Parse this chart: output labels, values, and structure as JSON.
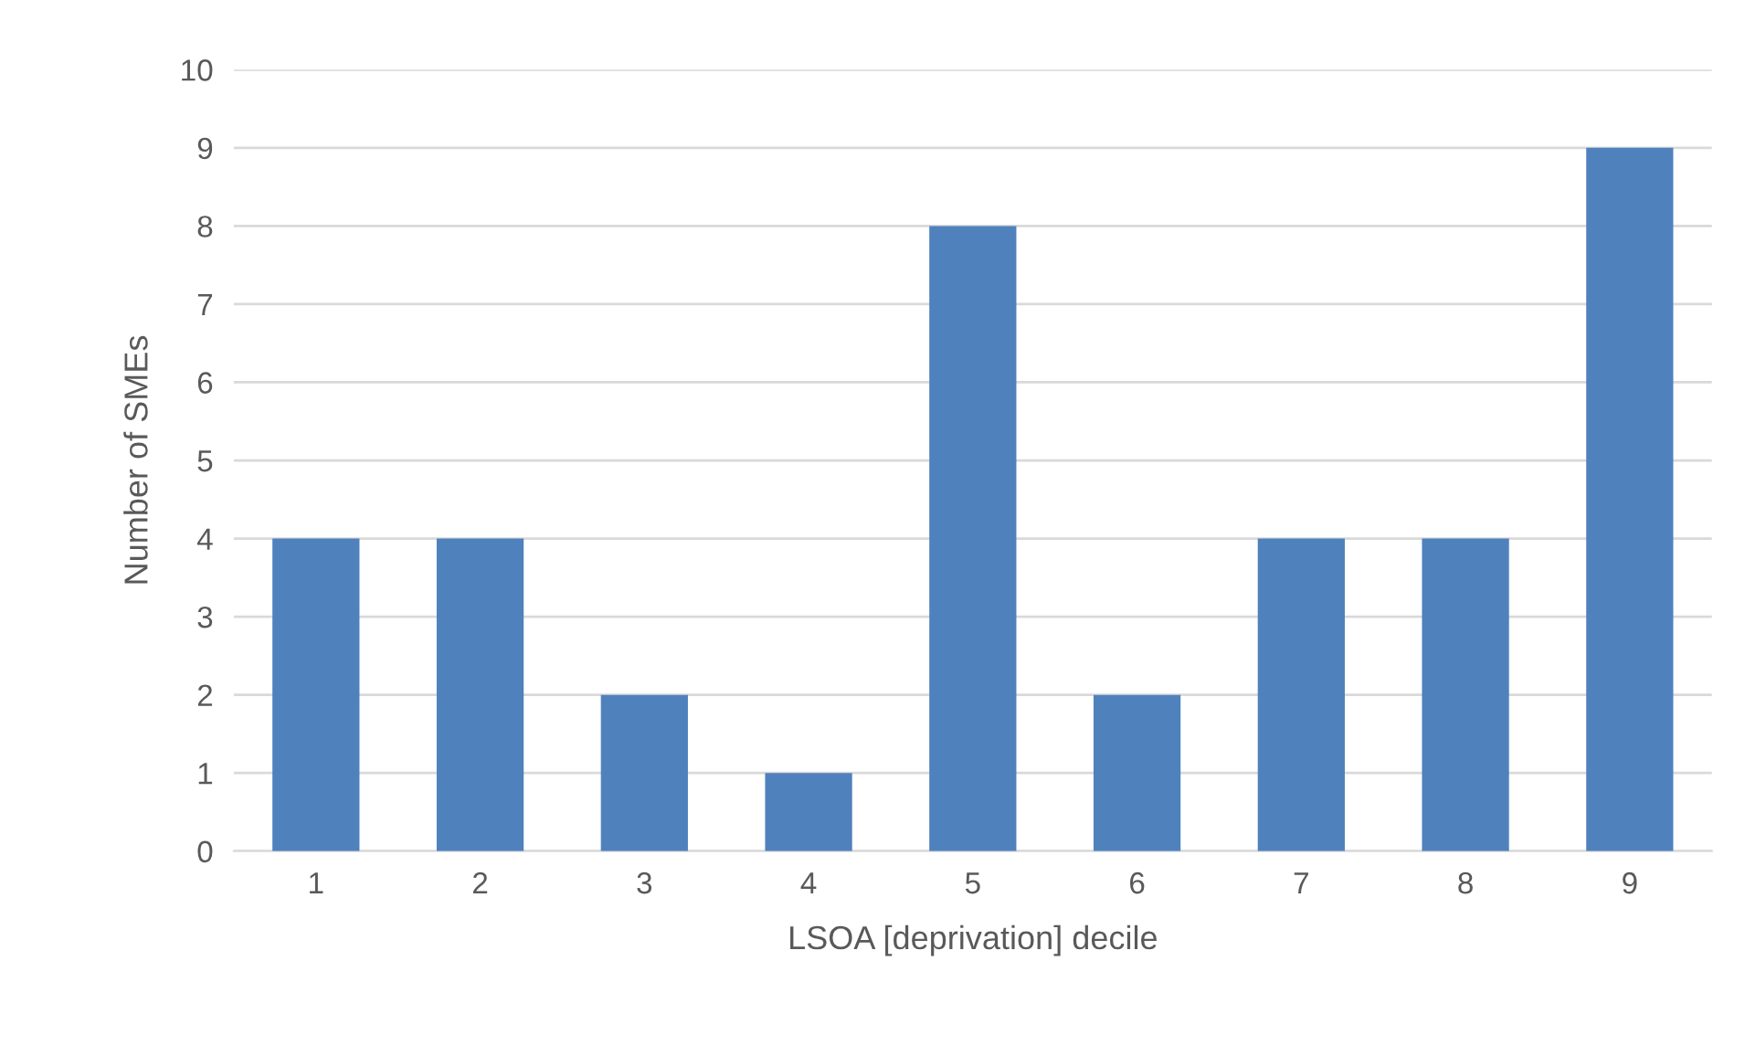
{
  "chart_data": {
    "type": "bar",
    "xlabel": "LSOA [deprivation] decile",
    "ylabel": "Number of SMEs",
    "categories": [
      "1",
      "2",
      "3",
      "4",
      "5",
      "6",
      "7",
      "8",
      "9"
    ],
    "values": [
      4,
      4,
      2,
      1,
      8,
      2,
      4,
      4,
      9
    ],
    "color": "#4f81bd",
    "ylim": [
      0,
      10
    ],
    "yticks": [
      0,
      1,
      2,
      3,
      4,
      5,
      6,
      7,
      8,
      9,
      10
    ],
    "grid": "y",
    "legend": false
  }
}
